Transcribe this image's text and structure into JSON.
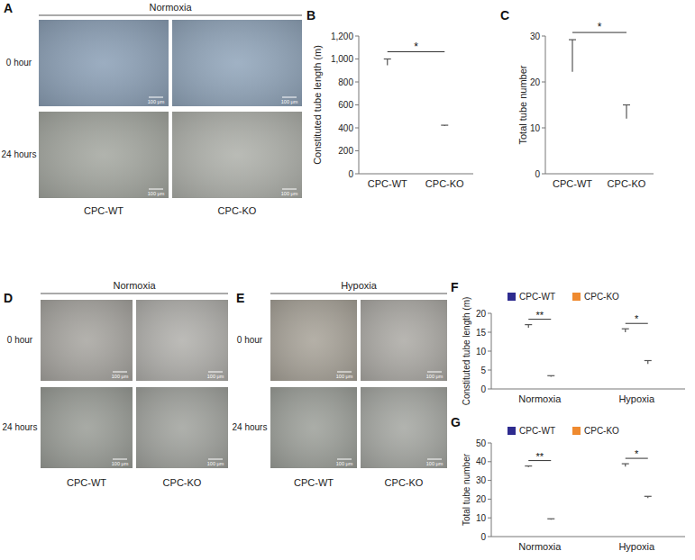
{
  "image_groups": [
    {
      "panel": "A",
      "condition": "Normoxia",
      "rows": [
        "0 hour",
        "24 hours"
      ],
      "columns": [
        "CPC-WT",
        "CPC-KO"
      ],
      "scale_bar": "100 μm"
    },
    {
      "panel": "D",
      "condition": "Normoxia",
      "rows": [
        "0 hour",
        "24 hours"
      ],
      "columns": [
        "CPC-WT",
        "CPC-KO"
      ],
      "scale_bar": "100 μm"
    },
    {
      "panel": "E",
      "condition": "Hypoxia",
      "rows": [
        "0 hour",
        "24 hours"
      ],
      "columns": [
        "CPC-WT",
        "CPC-KO"
      ],
      "scale_bar": "100 μm"
    }
  ],
  "chart_data": [
    {
      "panel": "B",
      "type": "bar",
      "y_label": "Constituted tube length (m)",
      "categories": [
        "CPC-WT",
        "CPC-KO"
      ],
      "values": [
        945,
        415
      ],
      "errors": [
        55,
        8
      ],
      "colors": [
        "#2e2b8f",
        "#ef8a2f"
      ],
      "ylim": [
        0,
        1200
      ],
      "yticks": [
        0,
        200,
        400,
        600,
        800,
        {
          "value": 1000,
          "label": "1,000"
        },
        {
          "value": 1200,
          "label": "1,200"
        }
      ],
      "significance": "*"
    },
    {
      "panel": "C",
      "type": "bar",
      "y_label": "Total tube number",
      "categories": [
        "CPC-WT",
        "CPC-KO"
      ],
      "values": [
        22.2,
        12
      ],
      "errors": [
        7,
        3
      ],
      "colors": [
        "#2e2b8f",
        "#ef8a2f"
      ],
      "ylim": [
        0,
        30
      ],
      "yticks": [
        0,
        10,
        20,
        30
      ],
      "significance": "*"
    },
    {
      "panel": "F",
      "type": "bar",
      "y_label": "Constituted tube length (m)",
      "categories": [
        "Normoxia",
        "Hypoxia"
      ],
      "series": [
        {
          "name": "CPC-WT",
          "color": "#2e2b8f",
          "values": [
            16.2,
            15
          ],
          "errors": [
            0.8,
            0.9
          ]
        },
        {
          "name": "CPC-KO",
          "color": "#ef8a2f",
          "values": [
            3.2,
            6.6
          ],
          "errors": [
            0.3,
            0.9
          ]
        }
      ],
      "ylim": [
        0,
        20
      ],
      "yticks": [
        0,
        5,
        10,
        15,
        20
      ],
      "legend": "top",
      "significance": [
        "**",
        "*"
      ]
    },
    {
      "panel": "G",
      "type": "bar",
      "y_label": "Total tube number",
      "categories": [
        "Normoxia",
        "Hypoxia"
      ],
      "series": [
        {
          "name": "CPC-WT",
          "color": "#2e2b8f",
          "values": [
            37.1,
            37.4
          ],
          "errors": [
            0.6,
            1.5
          ]
        },
        {
          "name": "CPC-KO",
          "color": "#ef8a2f",
          "values": [
            9,
            20.6
          ],
          "errors": [
            0.5,
            0.9
          ]
        }
      ],
      "ylim": [
        0,
        50
      ],
      "yticks": [
        0,
        10,
        20,
        30,
        40,
        50
      ],
      "legend": "top",
      "significance": [
        "**",
        "*"
      ]
    }
  ]
}
